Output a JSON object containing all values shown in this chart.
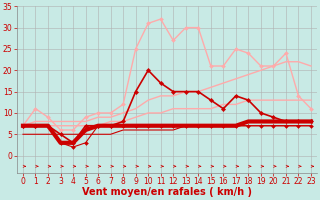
{
  "bg_color": "#c8eae5",
  "grid_color": "#b0b0b0",
  "xlabel": "Vent moyen/en rafales ( km/h )",
  "xlim": [
    -0.5,
    23.5
  ],
  "ylim": [
    0,
    35
  ],
  "xticks": [
    0,
    1,
    2,
    3,
    4,
    5,
    6,
    7,
    8,
    9,
    10,
    11,
    12,
    13,
    14,
    15,
    16,
    17,
    18,
    19,
    20,
    21,
    22,
    23
  ],
  "yticks": [
    0,
    5,
    10,
    15,
    20,
    25,
    30,
    35
  ],
  "lines": [
    {
      "x": [
        0,
        1,
        2,
        3,
        4,
        5,
        6,
        7,
        8,
        9,
        10,
        11,
        12,
        13,
        14,
        15,
        16,
        17,
        18,
        19,
        20,
        21,
        22,
        23
      ],
      "y": [
        7,
        11,
        9,
        6,
        6,
        9,
        10,
        10,
        12,
        25,
        31,
        32,
        27,
        30,
        30,
        21,
        21,
        25,
        24,
        21,
        21,
        24,
        14,
        11
      ],
      "color": "#ffaaaa",
      "lw": 1.0,
      "marker": "D",
      "ms": 2.0,
      "zorder": 3
    },
    {
      "x": [
        0,
        1,
        2,
        3,
        4,
        5,
        6,
        7,
        8,
        9,
        10,
        11,
        12,
        13,
        14,
        15,
        16,
        17,
        18,
        19,
        20,
        21,
        22,
        23
      ],
      "y": [
        7,
        8,
        8,
        8,
        8,
        8,
        9,
        9,
        10,
        11,
        13,
        14,
        14,
        15,
        15,
        16,
        17,
        18,
        19,
        20,
        21,
        22,
        22,
        21
      ],
      "color": "#ffaaaa",
      "lw": 1.0,
      "marker": null,
      "ms": 0,
      "zorder": 2
    },
    {
      "x": [
        0,
        1,
        2,
        3,
        4,
        5,
        6,
        7,
        8,
        9,
        10,
        11,
        12,
        13,
        14,
        15,
        16,
        17,
        18,
        19,
        20,
        21,
        22,
        23
      ],
      "y": [
        7,
        7,
        7,
        7,
        7,
        7,
        7,
        8,
        8,
        9,
        10,
        10,
        11,
        11,
        11,
        11,
        12,
        12,
        13,
        13,
        13,
        13,
        13,
        13
      ],
      "color": "#ffaaaa",
      "lw": 1.0,
      "marker": null,
      "ms": 0,
      "zorder": 2
    },
    {
      "x": [
        0,
        1,
        2,
        3,
        4,
        5,
        6,
        7,
        8,
        9,
        10,
        11,
        12,
        13,
        14,
        15,
        16,
        17,
        18,
        19,
        20,
        21,
        22,
        23
      ],
      "y": [
        7,
        7,
        7,
        5,
        3,
        7,
        7,
        7,
        8,
        15,
        20,
        17,
        15,
        15,
        15,
        13,
        11,
        14,
        13,
        10,
        9,
        8,
        8,
        8
      ],
      "color": "#cc0000",
      "lw": 1.2,
      "marker": "D",
      "ms": 2.2,
      "zorder": 5
    },
    {
      "x": [
        0,
        1,
        2,
        3,
        4,
        5,
        6,
        7,
        8,
        9,
        10,
        11,
        12,
        13,
        14,
        15,
        16,
        17,
        18,
        19,
        20,
        21,
        22,
        23
      ],
      "y": [
        7,
        7,
        7,
        3,
        3,
        6,
        7,
        7,
        7,
        7,
        7,
        7,
        7,
        7,
        7,
        7,
        7,
        7,
        8,
        8,
        8,
        8,
        8,
        8
      ],
      "color": "#cc0000",
      "lw": 3.0,
      "marker": null,
      "ms": 0,
      "zorder": 4
    },
    {
      "x": [
        0,
        1,
        2,
        3,
        4,
        5,
        6,
        7,
        8,
        9,
        10,
        11,
        12,
        13,
        14,
        15,
        16,
        17,
        18,
        19,
        20,
        21,
        22,
        23
      ],
      "y": [
        5,
        5,
        5,
        5,
        5,
        5,
        5,
        5,
        6,
        6,
        6,
        6,
        6,
        7,
        7,
        7,
        7,
        7,
        7,
        7,
        7,
        7,
        7,
        7
      ],
      "color": "#cc0000",
      "lw": 0.8,
      "marker": null,
      "ms": 0,
      "zorder": 3
    },
    {
      "x": [
        0,
        1,
        2,
        3,
        4,
        5,
        6,
        7,
        8,
        9,
        10,
        11,
        12,
        13,
        14,
        15,
        16,
        17,
        18,
        19,
        20,
        21,
        22,
        23
      ],
      "y": [
        7,
        7,
        7,
        3,
        2,
        3,
        7,
        7,
        7,
        7,
        7,
        7,
        7,
        7,
        7,
        7,
        7,
        7,
        7,
        7,
        7,
        7,
        7,
        7
      ],
      "color": "#cc0000",
      "lw": 0.8,
      "marker": "D",
      "ms": 2.0,
      "zorder": 4
    }
  ],
  "wind_arrows": true,
  "label_fontsize": 7,
  "tick_fontsize": 5.5
}
